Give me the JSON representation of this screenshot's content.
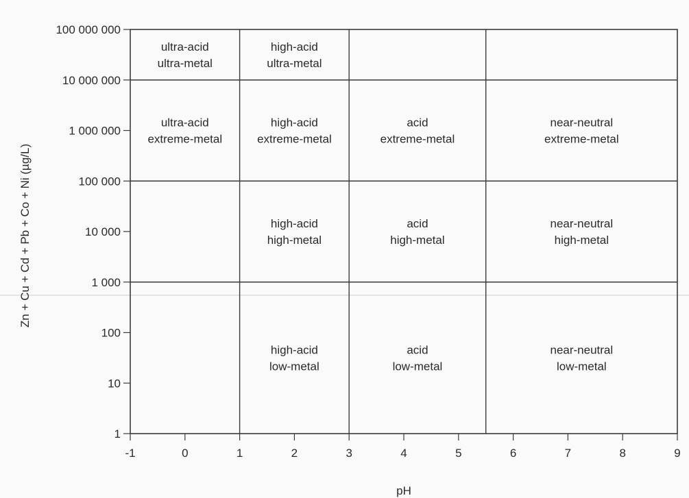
{
  "chart_data": {
    "type": "region-classification",
    "xlabel": "pH",
    "ylabel": "Zn + Cu + Cd + Pb + Co + Ni (µg/L)",
    "x_scale": "linear",
    "y_scale": "log",
    "xlim": [
      -1,
      9
    ],
    "ylim": [
      1,
      100000000
    ],
    "x_ticks": [
      {
        "value": -1,
        "label": "-1"
      },
      {
        "value": 0,
        "label": "0"
      },
      {
        "value": 1,
        "label": "1"
      },
      {
        "value": 2,
        "label": "2"
      },
      {
        "value": 3,
        "label": "3"
      },
      {
        "value": 4,
        "label": "4"
      },
      {
        "value": 5,
        "label": "5"
      },
      {
        "value": 6,
        "label": "6"
      },
      {
        "value": 7,
        "label": "7"
      },
      {
        "value": 8,
        "label": "8"
      },
      {
        "value": 9,
        "label": "9"
      }
    ],
    "y_ticks": [
      {
        "value": 1,
        "label": "1"
      },
      {
        "value": 10,
        "label": "10"
      },
      {
        "value": 100,
        "label": "100"
      },
      {
        "value": 1000,
        "label": "1 000"
      },
      {
        "value": 10000,
        "label": "10 000"
      },
      {
        "value": 100000,
        "label": "100 000"
      },
      {
        "value": 1000000,
        "label": "1 000 000"
      },
      {
        "value": 10000000,
        "label": "10 000 000"
      },
      {
        "value": 100000000,
        "label": "100 000 000"
      }
    ],
    "vertical_boundaries": [
      {
        "x": 1,
        "y_from": 1,
        "y_to": 100000000
      },
      {
        "x": 3,
        "y_from": 1,
        "y_to": 100000000
      },
      {
        "x": 5.5,
        "y_from": 1,
        "y_to": 100000000
      }
    ],
    "horizontal_boundaries": [
      {
        "y": 1000,
        "x_from": -1,
        "x_to": 9
      },
      {
        "y": 100000,
        "x_from": -1,
        "x_to": 9
      },
      {
        "y": 10000000,
        "x_from": -1,
        "x_to": 9
      }
    ],
    "regions": [
      {
        "lines": [
          "ultra-acid",
          "ultra-metal"
        ],
        "x": 0,
        "y": 31622777
      },
      {
        "lines": [
          "high-acid",
          "ultra-metal"
        ],
        "x": 2,
        "y": 31622777
      },
      {
        "lines": [
          "ultra-acid",
          "extreme-metal"
        ],
        "x": 0,
        "y": 1000000
      },
      {
        "lines": [
          "high-acid",
          "extreme-metal"
        ],
        "x": 2,
        "y": 1000000
      },
      {
        "lines": [
          "acid",
          "extreme-metal"
        ],
        "x": 4.25,
        "y": 1000000
      },
      {
        "lines": [
          "near-neutral",
          "extreme-metal"
        ],
        "x": 7.25,
        "y": 1000000
      },
      {
        "lines": [
          "high-acid",
          "high-metal"
        ],
        "x": 2,
        "y": 10000
      },
      {
        "lines": [
          "acid",
          "high-metal"
        ],
        "x": 4.25,
        "y": 10000
      },
      {
        "lines": [
          "near-neutral",
          "high-metal"
        ],
        "x": 7.25,
        "y": 10000
      },
      {
        "lines": [
          "high-acid",
          "low-metal"
        ],
        "x": 2,
        "y": 31.6
      },
      {
        "lines": [
          "acid",
          "low-metal"
        ],
        "x": 4.25,
        "y": 31.6
      },
      {
        "lines": [
          "near-neutral",
          "low-metal"
        ],
        "x": 7.25,
        "y": 31.6
      }
    ],
    "grid": false,
    "legend": "none",
    "colors": {
      "ink": "#2a2a2a",
      "frame": "#3a3a3a",
      "background": "#fafafa"
    }
  }
}
